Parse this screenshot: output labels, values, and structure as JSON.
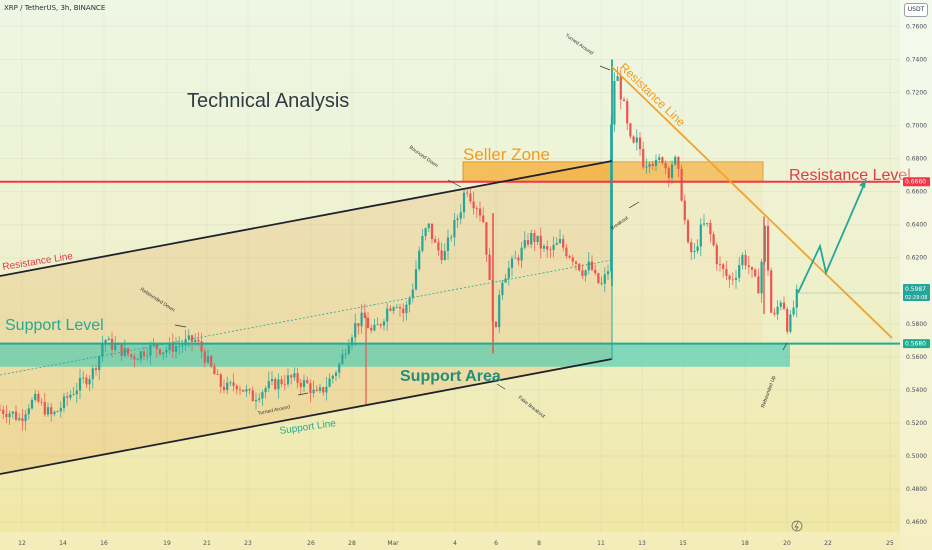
{
  "header": {
    "symbol": "XRP / TetherUS, 3h, BINANCE",
    "currency": "USDT"
  },
  "annotations": {
    "title": "Technical Analysis",
    "seller_zone": "Seller Zone",
    "resistance_level": "Resistance Level",
    "resistance_line_left": "Resistance Line",
    "resistance_line_right": "Resistance Line",
    "support_level": "Support Level",
    "support_area": "Support Area",
    "support_line": "Support Line",
    "bounced_down": "Bounced Down",
    "turned_around_top": "Turned Around",
    "turned_around_bottom": "Turned Around",
    "rebounded_down": "Rebounded Down",
    "breakout": "Breakout",
    "fake_breakout": "Fake Breakout",
    "rebounded_up": "Rebounded Up"
  },
  "price_badges": {
    "resistance": "0.6660",
    "current_price": "0.5987",
    "countdown": "02:29:08",
    "support": "0.5680"
  },
  "colors": {
    "bull": "#26a69a",
    "bear": "#ef5350",
    "resistance": "#f23645",
    "support": "#22ab94",
    "seller_zone": "#f7a21b",
    "channel": "#1e222d"
  },
  "chart_data": {
    "type": "candlestick",
    "symbol": "XRP / TetherUS",
    "interval": "3h",
    "exchange": "BINANCE",
    "x_ticks": [
      "12",
      "14",
      "16",
      "19",
      "21",
      "23",
      "26",
      "28",
      "Mar",
      "4",
      "6",
      "8",
      "11",
      "13",
      "15",
      "18",
      "20",
      "22",
      "25"
    ],
    "y_ticks": [
      "0.7600",
      "0.7400",
      "0.7200",
      "0.7000",
      "0.6800",
      "0.6600",
      "0.6400",
      "0.6200",
      "0.5800",
      "0.5600",
      "0.5400",
      "0.5200",
      "0.5000",
      "0.4800",
      "0.4600"
    ],
    "ylim": [
      0.454,
      0.776
    ],
    "resistance_level": 0.666,
    "support_level": 0.568,
    "support_area": [
      0.554,
      0.568
    ],
    "seller_zone": [
      0.666,
      0.678
    ],
    "last_price": 0.5987,
    "approx_close_path": [
      [
        0,
        0.528
      ],
      [
        12,
        0.526
      ],
      [
        20,
        0.522
      ],
      [
        28,
        0.531
      ],
      [
        36,
        0.534
      ],
      [
        44,
        0.529
      ],
      [
        52,
        0.524
      ],
      [
        60,
        0.529
      ],
      [
        68,
        0.536
      ],
      [
        76,
        0.541
      ],
      [
        84,
        0.546
      ],
      [
        92,
        0.55
      ],
      [
        100,
        0.562
      ],
      [
        104,
        0.572
      ],
      [
        108,
        0.568
      ],
      [
        116,
        0.566
      ],
      [
        124,
        0.563
      ],
      [
        132,
        0.56
      ],
      [
        140,
        0.562
      ],
      [
        148,
        0.565
      ],
      [
        156,
        0.566
      ],
      [
        164,
        0.564
      ],
      [
        172,
        0.566
      ],
      [
        180,
        0.567
      ],
      [
        188,
        0.569
      ],
      [
        196,
        0.57
      ],
      [
        204,
        0.561
      ],
      [
        212,
        0.552
      ],
      [
        220,
        0.543
      ],
      [
        228,
        0.541
      ],
      [
        236,
        0.544
      ],
      [
        244,
        0.54
      ],
      [
        252,
        0.535
      ],
      [
        260,
        0.539
      ],
      [
        268,
        0.542
      ],
      [
        276,
        0.544
      ],
      [
        284,
        0.546
      ],
      [
        292,
        0.547
      ],
      [
        300,
        0.545
      ],
      [
        308,
        0.543
      ],
      [
        316,
        0.536
      ],
      [
        324,
        0.541
      ],
      [
        332,
        0.548
      ],
      [
        340,
        0.556
      ],
      [
        348,
        0.57
      ],
      [
        356,
        0.58
      ],
      [
        364,
        0.584
      ],
      [
        372,
        0.574
      ],
      [
        380,
        0.58
      ],
      [
        388,
        0.59
      ],
      [
        396,
        0.594
      ],
      [
        404,
        0.586
      ],
      [
        412,
        0.6
      ],
      [
        420,
        0.627
      ],
      [
        428,
        0.64
      ],
      [
        436,
        0.626
      ],
      [
        444,
        0.621
      ],
      [
        452,
        0.636
      ],
      [
        460,
        0.648
      ],
      [
        466,
        0.664
      ],
      [
        472,
        0.655
      ],
      [
        478,
        0.651
      ],
      [
        484,
        0.641
      ],
      [
        488,
        0.614
      ],
      [
        492,
        0.588
      ],
      [
        496,
        0.574
      ],
      [
        500,
        0.606
      ],
      [
        506,
        0.611
      ],
      [
        512,
        0.616
      ],
      [
        518,
        0.621
      ],
      [
        524,
        0.626
      ],
      [
        530,
        0.633
      ],
      [
        536,
        0.631
      ],
      [
        542,
        0.626
      ],
      [
        548,
        0.623
      ],
      [
        554,
        0.626
      ],
      [
        560,
        0.629
      ],
      [
        566,
        0.624
      ],
      [
        572,
        0.621
      ],
      [
        578,
        0.616
      ],
      [
        584,
        0.611
      ],
      [
        590,
        0.616
      ],
      [
        596,
        0.606
      ],
      [
        602,
        0.603
      ],
      [
        608,
        0.613
      ],
      [
        612,
        0.72
      ],
      [
        616,
        0.733
      ],
      [
        620,
        0.721
      ],
      [
        624,
        0.711
      ],
      [
        628,
        0.696
      ],
      [
        632,
        0.686
      ],
      [
        638,
        0.691
      ],
      [
        644,
        0.676
      ],
      [
        650,
        0.681
      ],
      [
        656,
        0.676
      ],
      [
        662,
        0.681
      ],
      [
        668,
        0.671
      ],
      [
        674,
        0.681
      ],
      [
        680,
        0.666
      ],
      [
        684,
        0.646
      ],
      [
        688,
        0.626
      ],
      [
        694,
        0.621
      ],
      [
        700,
        0.636
      ],
      [
        706,
        0.641
      ],
      [
        712,
        0.631
      ],
      [
        718,
        0.616
      ],
      [
        724,
        0.611
      ],
      [
        730,
        0.606
      ],
      [
        736,
        0.611
      ],
      [
        742,
        0.621
      ],
      [
        748,
        0.616
      ],
      [
        754,
        0.606
      ],
      [
        760,
        0.601
      ],
      [
        764,
        0.643
      ],
      [
        768,
        0.614
      ],
      [
        772,
        0.58
      ],
      [
        776,
        0.586
      ],
      [
        780,
        0.596
      ],
      [
        784,
        0.591
      ],
      [
        788,
        0.576
      ],
      [
        792,
        0.586
      ],
      [
        796,
        0.596
      ],
      [
        798,
        0.5987
      ]
    ],
    "projection": [
      [
        798,
        0.5987
      ],
      [
        820,
        0.627
      ],
      [
        826,
        0.611
      ],
      [
        866,
        0.667
      ]
    ]
  }
}
